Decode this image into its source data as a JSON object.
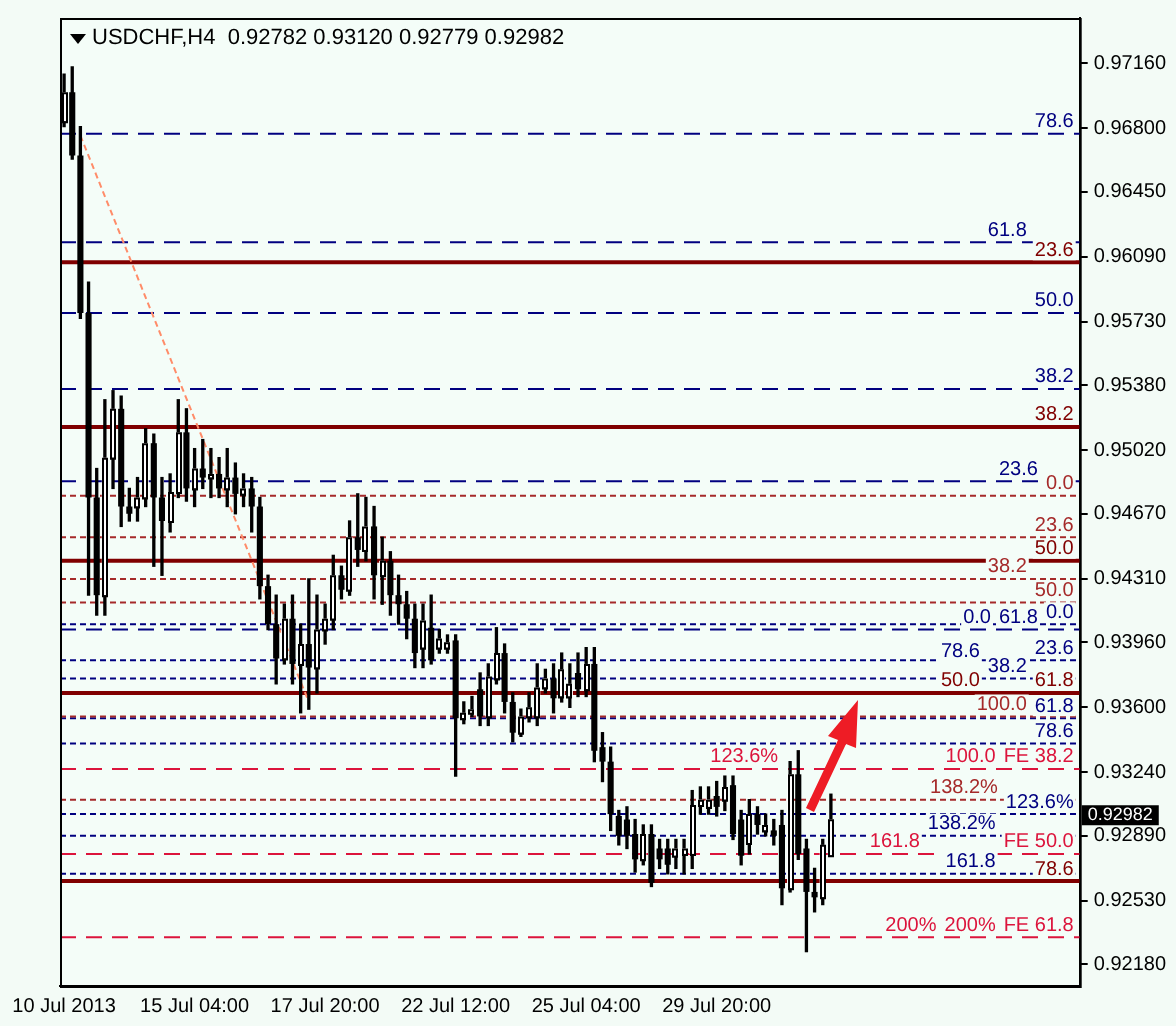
{
  "chart_data": {
    "type": "candlestick",
    "title": "USDCHF,H4  0.92782 0.93120 0.92779 0.92982",
    "categories": [
      "10 Jul 2013",
      null,
      null,
      null,
      null,
      null,
      null,
      null,
      null,
      null,
      null,
      null,
      null,
      null,
      null,
      null,
      "15 Jul 04:00",
      null,
      null,
      null,
      null,
      null,
      null,
      null,
      null,
      null,
      null,
      null,
      null,
      null,
      null,
      null,
      "17 Jul 20:00",
      null,
      null,
      null,
      null,
      null,
      null,
      null,
      null,
      null,
      null,
      null,
      null,
      null,
      null,
      null,
      "22 Jul 12:00",
      null,
      null,
      null,
      null,
      null,
      null,
      null,
      null,
      null,
      null,
      null,
      null,
      null,
      null,
      null,
      "25 Jul 04:00",
      null,
      null,
      null,
      null,
      null,
      null,
      null,
      null,
      null,
      null,
      null,
      null,
      null,
      null,
      null,
      "29 Jul 20:00",
      null,
      null,
      null,
      null,
      null,
      null,
      null,
      null,
      null,
      null,
      null,
      null,
      null,
      null,
      null,
      null,
      null,
      null,
      null,
      null,
      null,
      null,
      null,
      null,
      null,
      null,
      null,
      null,
      null,
      null,
      null,
      null,
      null,
      null,
      null,
      null,
      null,
      null,
      null,
      null,
      null,
      null,
      null,
      null
    ],
    "ohlc": [
      [
        0.9684,
        0.971,
        0.9681,
        0.97
      ],
      [
        0.97,
        0.9714,
        0.9663,
        0.9665
      ],
      [
        0.9665,
        0.9681,
        0.9575,
        0.9578
      ],
      [
        0.9578,
        0.9595,
        0.9422,
        0.9476
      ],
      [
        0.9476,
        0.9492,
        0.9411,
        0.9422
      ],
      [
        0.9422,
        0.953,
        0.9411,
        0.9498
      ],
      [
        0.9498,
        0.9535,
        0.9481,
        0.9525
      ],
      [
        0.9525,
        0.9532,
        0.946,
        0.9471
      ],
      [
        0.9471,
        0.9481,
        0.9463,
        0.9467
      ],
      [
        0.9471,
        0.9487,
        0.9463,
        0.9476
      ],
      [
        0.9476,
        0.9514,
        0.9471,
        0.9506
      ],
      [
        0.9506,
        0.9511,
        0.9438,
        0.9476
      ],
      [
        0.9476,
        0.9487,
        0.9433,
        0.9463
      ],
      [
        0.9463,
        0.9489,
        0.9457,
        0.9479
      ],
      [
        0.9479,
        0.953,
        0.9476,
        0.9512
      ],
      [
        0.9512,
        0.9525,
        0.9474,
        0.9481
      ],
      [
        0.9481,
        0.9503,
        0.9471,
        0.9492
      ],
      [
        0.9492,
        0.9508,
        0.9481,
        0.9487
      ],
      [
        0.9487,
        0.9503,
        0.9476,
        0.9489
      ],
      [
        0.9489,
        0.9498,
        0.9476,
        0.9481
      ],
      [
        0.9481,
        0.9503,
        0.9471,
        0.9487
      ],
      [
        0.9487,
        0.9495,
        0.9467,
        0.9478
      ],
      [
        0.9478,
        0.9489,
        0.9471,
        0.9481
      ],
      [
        0.9481,
        0.9487,
        0.9457,
        0.9471
      ],
      [
        0.9471,
        0.9476,
        0.942,
        0.9427
      ],
      [
        0.9427,
        0.9433,
        0.9403,
        0.9406
      ],
      [
        0.9406,
        0.9422,
        0.9373,
        0.9387
      ],
      [
        0.9387,
        0.9417,
        0.9384,
        0.9409
      ],
      [
        0.9409,
        0.9422,
        0.9373,
        0.9384
      ],
      [
        0.9384,
        0.9406,
        0.9357,
        0.9395
      ],
      [
        0.9395,
        0.9431,
        0.9359,
        0.9382
      ],
      [
        0.9382,
        0.9422,
        0.9368,
        0.9403
      ],
      [
        0.9403,
        0.9417,
        0.9395,
        0.9409
      ],
      [
        0.9409,
        0.9444,
        0.9403,
        0.9433
      ],
      [
        0.9433,
        0.9438,
        0.942,
        0.9425
      ],
      [
        0.9425,
        0.9463,
        0.9422,
        0.9454
      ],
      [
        0.9454,
        0.9478,
        0.9438,
        0.9447
      ],
      [
        0.9447,
        0.9476,
        0.9441,
        0.946
      ],
      [
        0.946,
        0.9471,
        0.942,
        0.9433
      ],
      [
        0.9433,
        0.9454,
        0.9417,
        0.9441
      ],
      [
        0.9441,
        0.9446,
        0.9411,
        0.9422
      ],
      [
        0.9422,
        0.9433,
        0.9406,
        0.9417
      ],
      [
        0.9417,
        0.9424,
        0.9398,
        0.9409
      ],
      [
        0.9409,
        0.9417,
        0.9382,
        0.939
      ],
      [
        0.9393,
        0.9417,
        0.9382,
        0.9408
      ],
      [
        0.9404,
        0.9422,
        0.9384,
        0.9386
      ],
      [
        0.9393,
        0.9403,
        0.939,
        0.9398
      ],
      [
        0.9393,
        0.94,
        0.939,
        0.9396
      ],
      [
        0.9397,
        0.94,
        0.9322,
        0.9354
      ],
      [
        0.9354,
        0.9363,
        0.9351,
        0.9357
      ],
      [
        0.9357,
        0.9366,
        0.9355,
        0.9359
      ],
      [
        0.937,
        0.9379,
        0.935,
        0.9355
      ],
      [
        0.9355,
        0.9384,
        0.935,
        0.9377
      ],
      [
        0.9376,
        0.9404,
        0.9373,
        0.939
      ],
      [
        0.939,
        0.9395,
        0.9357,
        0.9363
      ],
      [
        0.9363,
        0.9368,
        0.9341,
        0.9346
      ],
      [
        0.9346,
        0.9359,
        0.9344,
        0.9355
      ],
      [
        0.9355,
        0.9368,
        0.9352,
        0.936
      ],
      [
        0.9355,
        0.9384,
        0.935,
        0.9371
      ],
      [
        0.9371,
        0.9381,
        0.9368,
        0.9376
      ],
      [
        0.9376,
        0.9384,
        0.9357,
        0.9365
      ],
      [
        0.9366,
        0.939,
        0.9363,
        0.9381
      ],
      [
        0.9366,
        0.9384,
        0.936,
        0.9373
      ],
      [
        0.9379,
        0.939,
        0.9366,
        0.937
      ],
      [
        0.937,
        0.9393,
        0.9366,
        0.9384
      ],
      [
        0.9384,
        0.9393,
        0.933,
        0.9336
      ],
      [
        0.9338,
        0.9346,
        0.9319,
        0.933
      ],
      [
        0.933,
        0.9338,
        0.9292,
        0.9301
      ],
      [
        0.93,
        0.9303,
        0.9284,
        0.9289
      ],
      [
        0.9298,
        0.9305,
        0.9282,
        0.9289
      ],
      [
        0.929,
        0.9298,
        0.9269,
        0.9276
      ],
      [
        0.9276,
        0.9295,
        0.9273,
        0.929
      ],
      [
        0.929,
        0.9295,
        0.9261,
        0.9263
      ],
      [
        0.9282,
        0.9287,
        0.9271,
        0.9276
      ],
      [
        0.9282,
        0.9287,
        0.9268,
        0.9273
      ],
      [
        0.9278,
        0.9287,
        0.9271,
        0.9282
      ],
      [
        0.9279,
        0.9287,
        0.9268,
        0.9282
      ],
      [
        0.9279,
        0.9314,
        0.9271,
        0.9306
      ],
      [
        0.9306,
        0.9316,
        0.9301,
        0.9309
      ],
      [
        0.9305,
        0.9316,
        0.9301,
        0.9309
      ],
      [
        0.9311,
        0.9319,
        0.93,
        0.9305
      ],
      [
        0.9309,
        0.9322,
        0.9303,
        0.9316
      ],
      [
        0.9317,
        0.9322,
        0.9287,
        0.929
      ],
      [
        0.9298,
        0.9303,
        0.9273,
        0.9278
      ],
      [
        0.9285,
        0.9309,
        0.9279,
        0.9301
      ],
      [
        0.9301,
        0.9305,
        0.929,
        0.9295
      ],
      [
        0.9292,
        0.9301,
        0.9289,
        0.9295
      ],
      [
        0.9292,
        0.9298,
        0.9284,
        0.9289
      ],
      [
        0.9295,
        0.9303,
        0.9251,
        0.926
      ],
      [
        0.926,
        0.933,
        0.9258,
        0.9323
      ],
      [
        0.9323,
        0.9336,
        0.9276,
        0.9279
      ],
      [
        0.9282,
        0.9287,
        0.9225,
        0.9258
      ],
      [
        0.9258,
        0.9271,
        0.9247,
        0.9255
      ],
      [
        0.9255,
        0.9287,
        0.9251,
        0.9284
      ],
      [
        0.92782,
        0.9312,
        0.92779,
        0.92982
      ],
      null,
      null,
      null,
      null,
      null,
      null,
      null,
      null,
      null,
      null,
      null,
      null,
      null,
      null,
      null,
      null,
      null,
      null,
      null,
      null,
      null,
      null,
      null,
      null,
      null,
      null,
      null,
      null,
      null,
      null
    ],
    "series": [
      {
        "type": "line",
        "color": "#ff8c69",
        "line_style": "dotted",
        "marker": "none",
        "values": [
          null,
          null,
          0.9676,
          null,
          null,
          null,
          null,
          null,
          null,
          null,
          null,
          null,
          null,
          null,
          null,
          null,
          null,
          null,
          null,
          null,
          null,
          null,
          null,
          null,
          null,
          null,
          null,
          null,
          null,
          null,
          0.9363,
          null,
          null,
          null,
          null,
          null,
          null,
          null,
          null,
          null,
          null,
          null,
          null,
          null,
          null,
          null,
          null,
          null,
          null,
          null,
          null,
          null,
          null,
          null,
          null,
          null,
          null,
          null,
          null,
          null,
          null,
          null,
          null,
          null,
          null,
          null,
          null,
          null,
          null,
          null,
          null,
          null,
          null,
          null,
          null,
          null,
          null,
          null,
          null,
          null,
          null,
          null,
          null,
          null,
          null,
          null,
          null,
          null,
          null,
          null,
          null,
          null,
          null,
          null,
          null,
          null,
          null,
          null,
          null,
          null,
          null,
          null,
          null,
          null,
          null,
          null,
          null,
          null,
          null,
          null,
          null,
          null,
          null,
          null,
          null,
          null,
          null,
          null,
          null,
          null,
          null,
          null,
          null,
          null,
          null
        ]
      }
    ],
    "ylim": [
      0.9206,
      0.9741
    ],
    "yticks": [
      {
        "value": 0.9218,
        "label": "0.92180"
      },
      {
        "value": 0.9253,
        "label": "0.92530"
      },
      {
        "value": 0.9289,
        "label": "0.92890"
      },
      {
        "value": 0.9324,
        "label": "0.93240"
      },
      {
        "value": 0.936,
        "label": "0.93600"
      },
      {
        "value": 0.9396,
        "label": "0.93960"
      },
      {
        "value": 0.9431,
        "label": "0.94310"
      },
      {
        "value": 0.9467,
        "label": "0.94670"
      },
      {
        "value": 0.9502,
        "label": "0.95020"
      },
      {
        "value": 0.9538,
        "label": "0.95380"
      },
      {
        "value": 0.9573,
        "label": "0.95730"
      },
      {
        "value": 0.9609,
        "label": "0.96090"
      },
      {
        "value": 0.9645,
        "label": "0.96450"
      },
      {
        "value": 0.968,
        "label": "0.96800"
      },
      {
        "value": 0.9716,
        "label": "0.97160"
      }
    ],
    "ref_lines": [
      {
        "axis": "y",
        "value": 0.9606,
        "color": "#800000",
        "line_style": "solid"
      },
      {
        "axis": "y",
        "value": 0.9515,
        "color": "#800000",
        "line_style": "solid"
      },
      {
        "axis": "y",
        "value": 0.9441,
        "color": "#800000",
        "line_style": "solid"
      },
      {
        "axis": "y",
        "value": 0.9368,
        "color": "#800000",
        "line_style": "solid"
      },
      {
        "axis": "y",
        "value": 0.9264,
        "color": "#800000",
        "line_style": "solid"
      },
      {
        "axis": "y",
        "value": 0.9326,
        "color": "#dc143c",
        "line_style": "dashed"
      },
      {
        "axis": "y",
        "value": 0.9279,
        "color": "#dc143c",
        "line_style": "dashed"
      },
      {
        "axis": "y",
        "value": 0.9233,
        "color": "#dc143c",
        "line_style": "dashed"
      },
      {
        "axis": "y",
        "value": 0.9406,
        "color": "#000080",
        "line_style": "dotted"
      },
      {
        "axis": "y",
        "value": 0.9386,
        "color": "#000080",
        "line_style": "dotted"
      },
      {
        "axis": "y",
        "value": 0.9376,
        "color": "#000080",
        "line_style": "dotted"
      },
      {
        "axis": "y",
        "value": 0.9354,
        "color": "#000080",
        "line_style": "dotted"
      },
      {
        "axis": "y",
        "value": 0.934,
        "color": "#000080",
        "line_style": "dotted"
      },
      {
        "axis": "y",
        "value": 0.9301,
        "color": "#000080",
        "line_style": "dotted"
      },
      {
        "axis": "y",
        "value": 0.9289,
        "color": "#000080",
        "line_style": "dotted"
      },
      {
        "axis": "y",
        "value": 0.9268,
        "color": "#000080",
        "line_style": "dotted"
      },
      {
        "axis": "y",
        "value": 0.9477,
        "color": "#a52a2a",
        "line_style": "dotted"
      },
      {
        "axis": "y",
        "value": 0.9454,
        "color": "#a52a2a",
        "line_style": "dotted"
      },
      {
        "axis": "y",
        "value": 0.9431,
        "color": "#a52a2a",
        "line_style": "dotted"
      },
      {
        "axis": "y",
        "value": 0.9418,
        "color": "#a52a2a",
        "line_style": "dotted"
      },
      {
        "axis": "y",
        "value": 0.9355,
        "color": "#a52a2a",
        "line_style": "dotted"
      },
      {
        "axis": "y",
        "value": 0.9309,
        "color": "#a52a2a",
        "line_style": "dotted"
      },
      {
        "axis": "y",
        "value": 0.9677,
        "color": "#000080",
        "line_style": "dashed"
      },
      {
        "axis": "y",
        "value": 0.9617,
        "color": "#000080",
        "line_style": "dashed"
      },
      {
        "axis": "y",
        "value": 0.9578,
        "color": "#000080",
        "line_style": "dashed"
      },
      {
        "axis": "y",
        "value": 0.9536,
        "color": "#000080",
        "line_style": "dashed"
      },
      {
        "axis": "y",
        "value": 0.9485,
        "color": "#000080",
        "line_style": "dashed"
      },
      {
        "axis": "y",
        "value": 0.9403,
        "color": "#000080",
        "line_style": "dashed"
      }
    ],
    "annotations": [
      "0.92982",
      {
        "text": "23.6",
        "y": 0.9606
      },
      {
        "text": "38.2",
        "y": 0.9515
      },
      {
        "text": "50.0",
        "y": 0.9441
      },
      {
        "text": "61.8",
        "y": 0.9368
      },
      {
        "text": "78.6",
        "y": 0.9264
      },
      {
        "text": "FE 38.2",
        "y": 0.9326
      },
      {
        "text": "FE 50.0",
        "y": 0.9279
      },
      {
        "text": "FE 61.8",
        "y": 0.9233
      },
      {
        "text": "0.0",
        "y": 0.9406
      },
      {
        "text": "23.6",
        "y": 0.9386
      },
      {
        "text": "38.2",
        "y": 0.9376
      },
      {
        "text": "50.0",
        "y": 0.9368
      },
      {
        "text": "61.8",
        "y": 0.9354
      },
      {
        "text": "78.6",
        "y": 0.934
      },
      {
        "text": "100.0",
        "y": 0.9326
      },
      {
        "text": "123.6%",
        "y": 0.9301
      },
      {
        "text": "138.2%",
        "y": 0.9289
      },
      {
        "text": "161.8",
        "y": 0.9268
      },
      {
        "text": "200%",
        "y": 0.9233
      },
      {
        "text": "0.0",
        "y": 0.9477
      },
      {
        "text": "23.6",
        "y": 0.9454
      },
      {
        "text": "38.2",
        "y": 0.9431
      },
      {
        "text": "50.0",
        "y": 0.9418
      },
      {
        "text": "61.8",
        "y": 0.9403
      },
      {
        "text": "78.6",
        "y": 0.9384
      },
      {
        "text": "100.0",
        "y": 0.9355
      },
      {
        "text": "123.6%",
        "y": 0.9326
      },
      {
        "text": "138.2%",
        "y": 0.9309
      },
      {
        "text": "161.8",
        "y": 0.9279
      },
      {
        "text": "200%",
        "y": 0.9233
      },
      {
        "text": "78.6",
        "y": 0.9677
      },
      {
        "text": "61.8",
        "y": 0.9617
      },
      {
        "text": "50.0",
        "y": 0.9578
      },
      {
        "text": "38.2",
        "y": 0.9536
      },
      {
        "text": "23.6",
        "y": 0.9485
      },
      {
        "text": "0.0",
        "y": 0.9403
      }
    ]
  }
}
